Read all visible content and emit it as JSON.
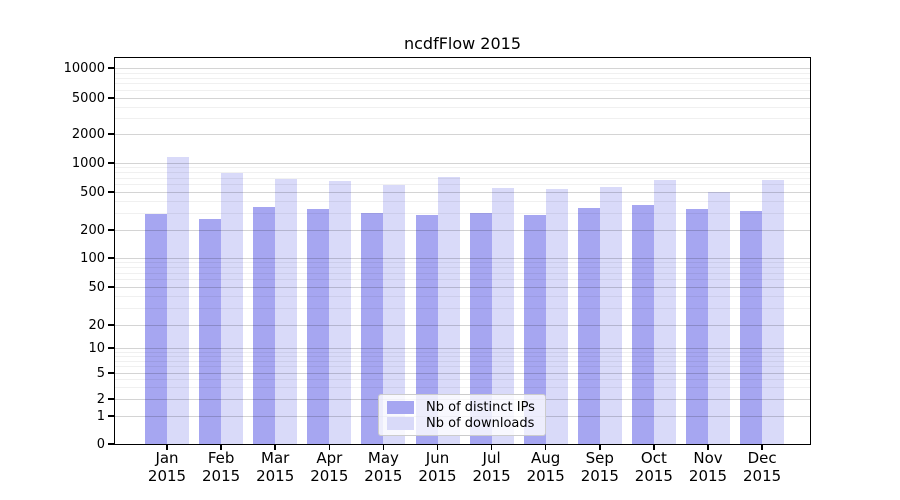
{
  "chart_data": {
    "type": "bar",
    "title": "ncdfFlow 2015",
    "categories": [
      "Jan",
      "Feb",
      "Mar",
      "Apr",
      "May",
      "Jun",
      "Jul",
      "Aug",
      "Sep",
      "Oct",
      "Nov",
      "Dec"
    ],
    "x_tick_year": "2015",
    "series": [
      {
        "name": "Nb of distinct IPs",
        "color": "#a6a6f1",
        "values": [
          295,
          260,
          350,
          330,
          300,
          290,
          305,
          285,
          340,
          370,
          330,
          315
        ]
      },
      {
        "name": "Nb of downloads",
        "color": "#d9daf9",
        "values": [
          1150,
          790,
          680,
          650,
          590,
          715,
          550,
          540,
          565,
          670,
          500,
          670
        ]
      }
    ],
    "y_axis": {
      "scale": "symlog",
      "tick_values": [
        0,
        1,
        2,
        5,
        10,
        20,
        50,
        100,
        200,
        500,
        1000,
        2000,
        5000,
        10000
      ]
    },
    "grid": {
      "major": true,
      "minor": true
    },
    "legend": {
      "position": "inside-bottom-center",
      "entries": [
        "Nb of distinct IPs",
        "Nb of downloads"
      ]
    },
    "colors": {
      "major_grid": "#d1d1d1",
      "minor_grid": "#efefef",
      "spine": "#000000",
      "background": "#ffffff"
    }
  }
}
